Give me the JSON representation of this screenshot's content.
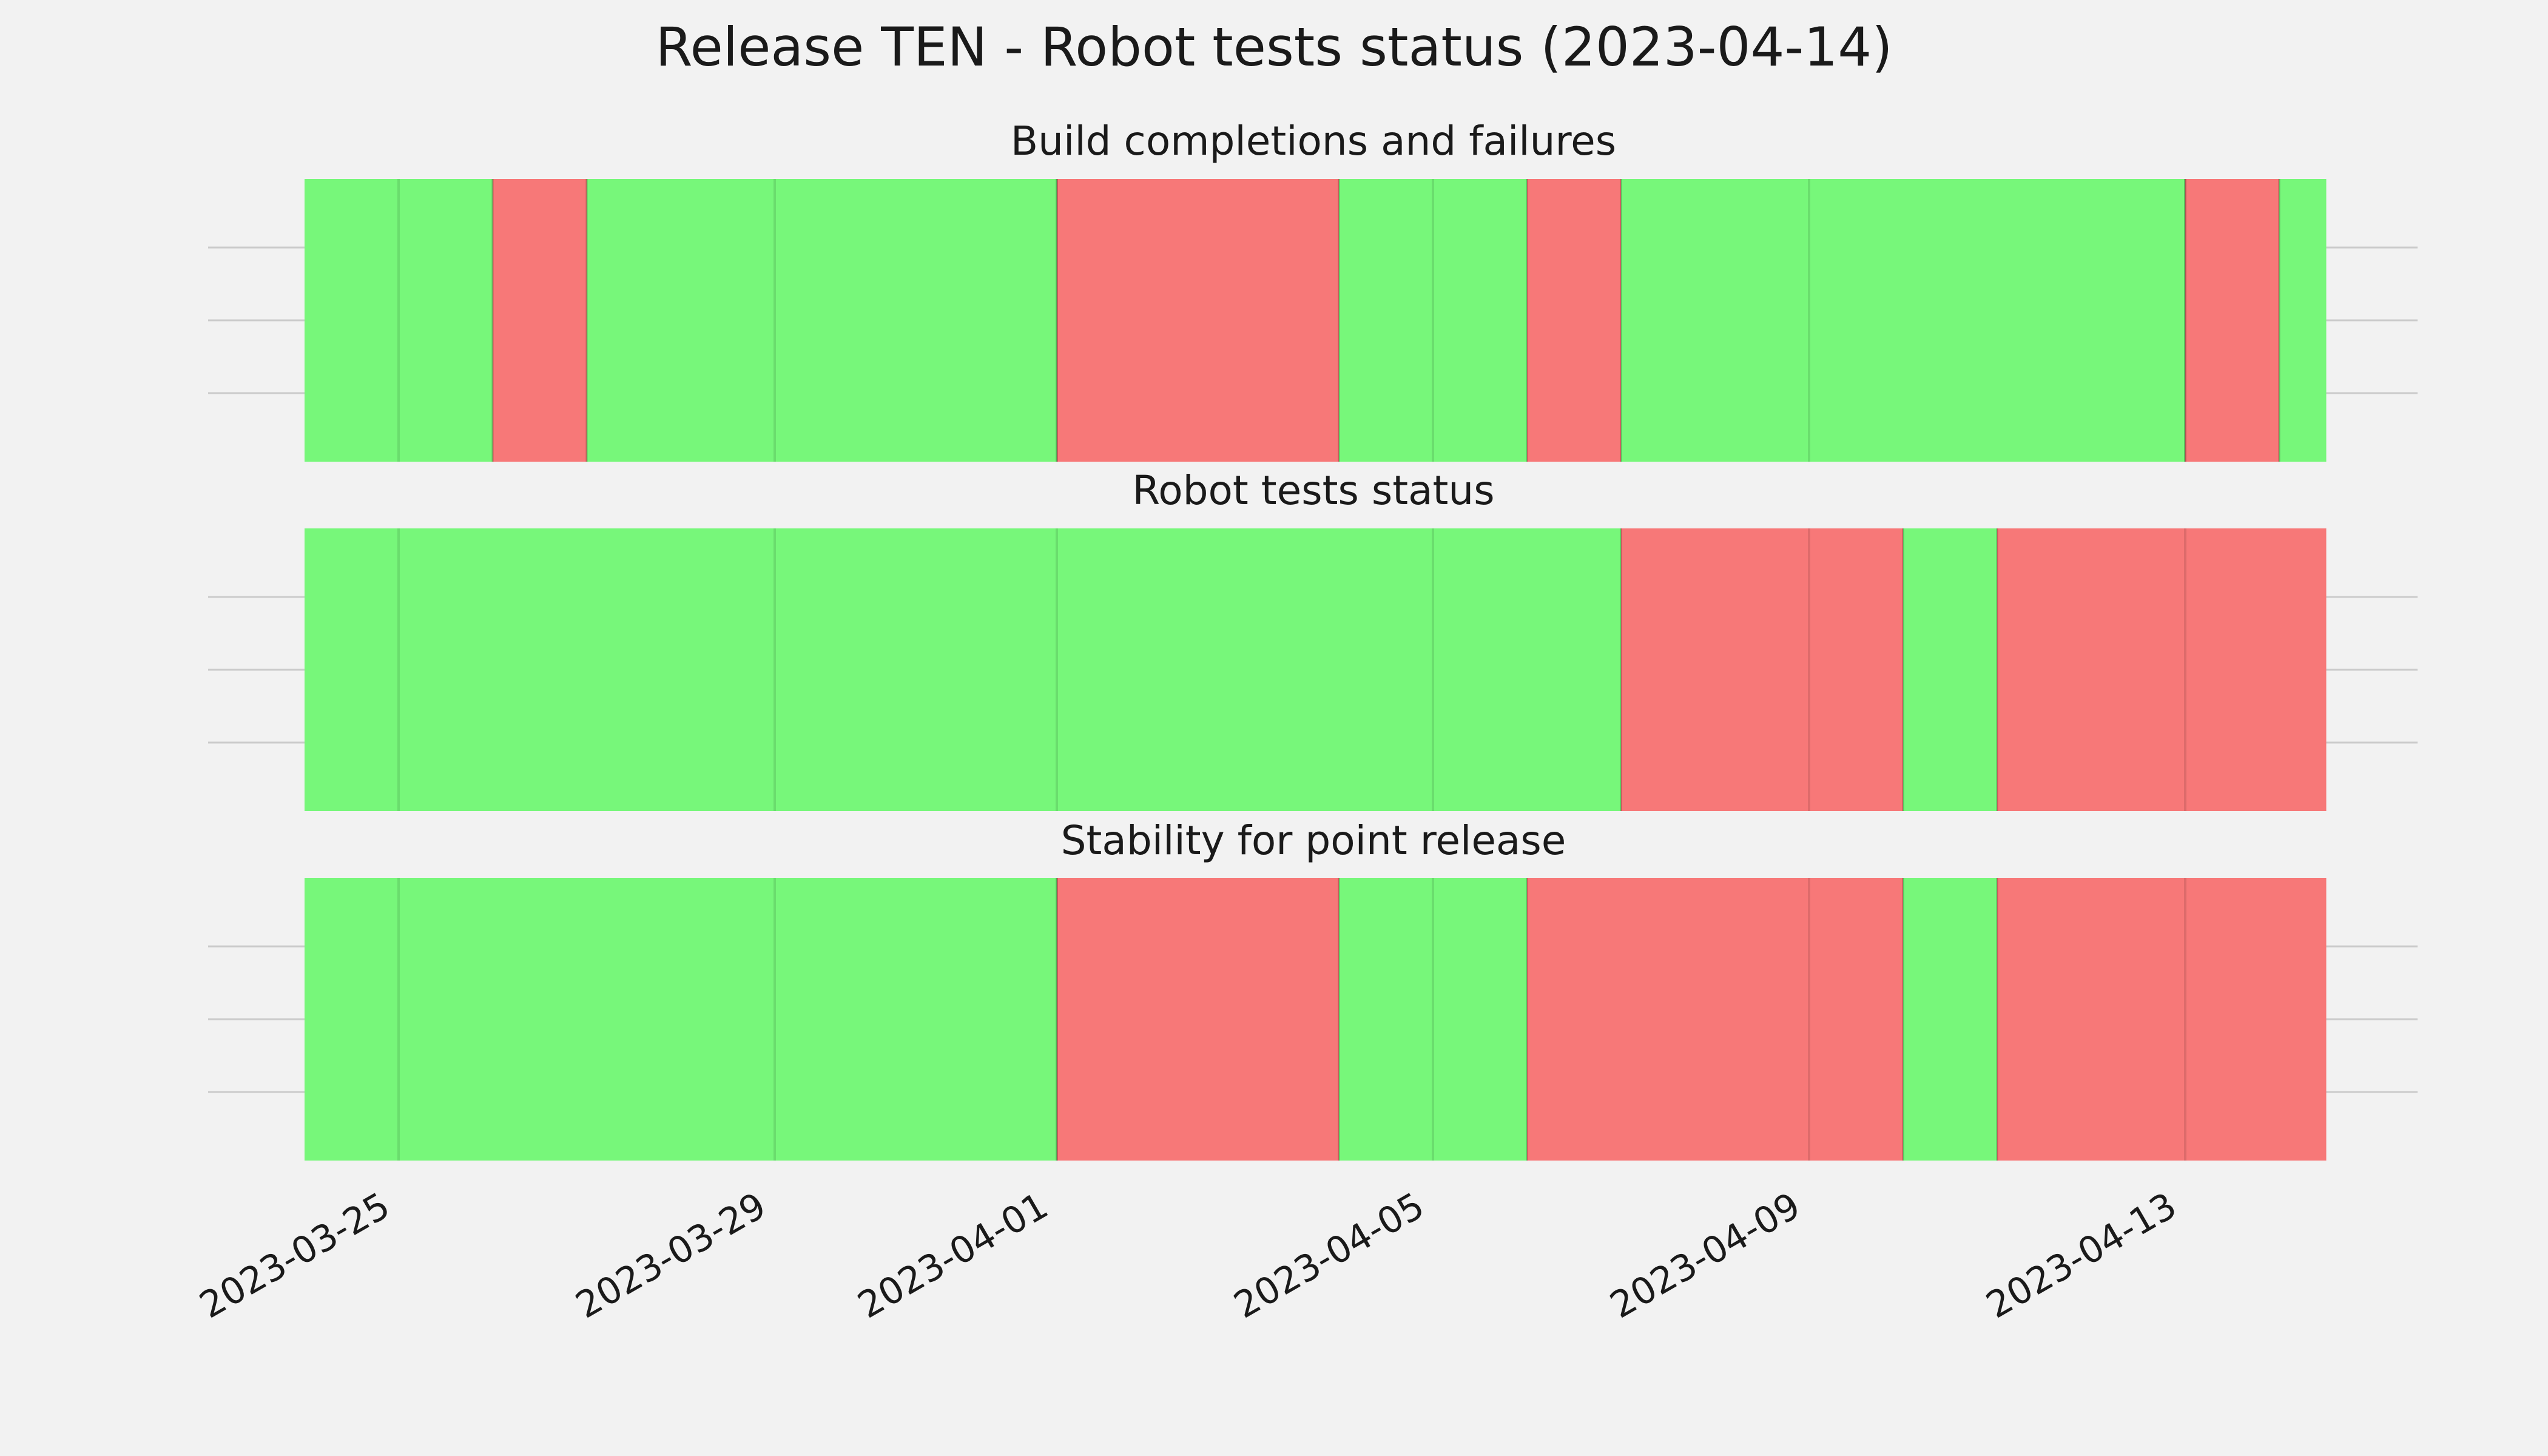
{
  "chart_data": {
    "type": "timeline",
    "title": "Release TEN - Robot tests status (2023-04-14)",
    "x_axis": {
      "type": "date",
      "range": [
        "2023-03-24",
        "2023-04-14"
      ],
      "ticks": [
        "2023-03-25",
        "2023-03-29",
        "2023-04-01",
        "2023-04-05",
        "2023-04-09",
        "2023-04-13"
      ]
    },
    "grid": true,
    "status_colors": {
      "pass": "#77f77a",
      "fail": "#f77878"
    },
    "panels": [
      {
        "title": "Build completions and failures",
        "segments": [
          {
            "start": "2023-03-24",
            "end": "2023-03-26",
            "status": "pass"
          },
          {
            "start": "2023-03-26",
            "end": "2023-03-27",
            "status": "fail"
          },
          {
            "start": "2023-03-27",
            "end": "2023-04-01",
            "status": "pass"
          },
          {
            "start": "2023-04-01",
            "end": "2023-04-04",
            "status": "fail"
          },
          {
            "start": "2023-04-04",
            "end": "2023-04-06",
            "status": "pass"
          },
          {
            "start": "2023-04-06",
            "end": "2023-04-07",
            "status": "fail"
          },
          {
            "start": "2023-04-07",
            "end": "2023-04-13",
            "status": "pass"
          },
          {
            "start": "2023-04-13",
            "end": "2023-04-14",
            "status": "fail"
          },
          {
            "start": "2023-04-14",
            "end": "2023-04-14T12:00",
            "status": "pass"
          }
        ]
      },
      {
        "title": "Robot tests status",
        "segments": [
          {
            "start": "2023-03-24",
            "end": "2023-04-07",
            "status": "pass"
          },
          {
            "start": "2023-04-07",
            "end": "2023-04-10",
            "status": "fail"
          },
          {
            "start": "2023-04-10",
            "end": "2023-04-11",
            "status": "pass"
          },
          {
            "start": "2023-04-11",
            "end": "2023-04-14T12:00",
            "status": "fail"
          }
        ]
      },
      {
        "title": "Stability for point release",
        "segments": [
          {
            "start": "2023-03-24",
            "end": "2023-04-01",
            "status": "pass"
          },
          {
            "start": "2023-04-01",
            "end": "2023-04-04",
            "status": "fail"
          },
          {
            "start": "2023-04-04",
            "end": "2023-04-06",
            "status": "pass"
          },
          {
            "start": "2023-04-06",
            "end": "2023-04-10",
            "status": "fail"
          },
          {
            "start": "2023-04-10",
            "end": "2023-04-11",
            "status": "pass"
          },
          {
            "start": "2023-04-11",
            "end": "2023-04-14T12:00",
            "status": "fail"
          }
        ]
      }
    ]
  }
}
